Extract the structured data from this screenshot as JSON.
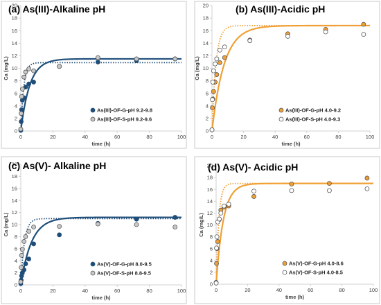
{
  "figure": {
    "background": "#ffffff"
  },
  "chart_data": [
    {
      "type": "scatter",
      "title": "(a) As(III)-Alkaline pH",
      "xlabel": "time (h)",
      "ylabel": "Ca (mg/L)",
      "xlim": [
        0,
        100
      ],
      "ylim": [
        0,
        20
      ],
      "xticks": [
        0,
        20,
        40,
        60,
        80,
        100
      ],
      "yticks": [
        0,
        2,
        4,
        6,
        8,
        10,
        12,
        14,
        16,
        18,
        20
      ],
      "legend_position": "bottom-right",
      "grid": false,
      "series": [
        {
          "name": "As(III)-OF-G-pH 9.2-9.8",
          "marker_fill": "#1f4e79",
          "marker_stroke": "#1f4e79",
          "fit_color": "#1f4e79",
          "fit_style": "solid",
          "fit": {
            "qe": 11.5,
            "k": 0.18
          },
          "x": [
            0,
            0.25,
            0.5,
            1,
            2,
            3,
            5,
            8,
            24,
            48,
            72,
            96
          ],
          "y": [
            0.1,
            1.5,
            3.4,
            4.9,
            5.3,
            7.0,
            7.5,
            7.8,
            10.3,
            11.0,
            11.2,
            11.5
          ]
        },
        {
          "name": "As(III)-OF-S-pH 9.2-9.6",
          "marker_fill": "#c8c8c8",
          "marker_stroke": "#555555",
          "fit_color": "#1f4e79",
          "fit_style": "dotted",
          "fit": {
            "qe": 10.9,
            "k": 0.55
          },
          "x": [
            0,
            0.25,
            0.5,
            1,
            2,
            3,
            5,
            8,
            24,
            48,
            72,
            96
          ],
          "y": [
            0.3,
            2.8,
            5.5,
            6.7,
            8.6,
            9.4,
            9.9,
            9.6,
            10.3,
            11.7,
            11.5,
            11.5
          ]
        }
      ]
    },
    {
      "type": "scatter",
      "title": "(b) As(III)-Acidic pH",
      "xlabel": "time (h)",
      "ylabel": "Ca (mg/L)",
      "xlim": [
        0,
        100
      ],
      "ylim": [
        0,
        20
      ],
      "xticks": [
        0,
        20,
        40,
        60,
        80,
        100
      ],
      "yticks": [
        0,
        2,
        4,
        6,
        8,
        10,
        12,
        14,
        16,
        18,
        20
      ],
      "legend_position": "bottom-right",
      "grid": false,
      "series": [
        {
          "name": "As(III)-OF-G-pH 4.0-9.2",
          "marker_fill": "#f0a035",
          "marker_stroke": "#555555",
          "fit_color": "#f0a035",
          "fit_style": "solid",
          "fit": {
            "qe": 16.8,
            "k": 0.13
          },
          "x": [
            0,
            0.25,
            0.5,
            1,
            2,
            3,
            5,
            8,
            24,
            48,
            72,
            96
          ],
          "y": [
            0.2,
            3.7,
            5.1,
            6.3,
            7.8,
            9.0,
            10.9,
            11.7,
            14.5,
            15.5,
            16.2,
            17.0
          ]
        },
        {
          "name": "As(III)-OF-S-pH 4.0-9.3",
          "marker_fill": "#ffffff",
          "marker_stroke": "#555555",
          "fit_color": "#f0a035",
          "fit_style": "dotted",
          "fit": {
            "qe": 16.8,
            "k": 0.4
          },
          "x": [
            0,
            0.25,
            0.5,
            1,
            2,
            3,
            5,
            8,
            24,
            48,
            72,
            96
          ],
          "y": [
            0.2,
            5.0,
            7.8,
            9.6,
            10.7,
            11.5,
            12.9,
            13.4,
            14.4,
            15.1,
            15.8,
            15.4
          ]
        }
      ]
    },
    {
      "type": "scatter",
      "title": "(c) As(V)- Alkaline pH",
      "xlabel": "time (h)",
      "ylabel": "Ca (mg/L)",
      "xlim": [
        0,
        100
      ],
      "ylim": [
        0,
        20
      ],
      "xticks": [
        0,
        20,
        40,
        60,
        80,
        100
      ],
      "yticks": [
        0,
        2,
        4,
        6,
        8,
        10,
        12,
        14,
        16,
        18,
        20
      ],
      "legend_position": "bottom-right",
      "grid": false,
      "series": [
        {
          "name": "As(V)-OF-G-pH 8.0-9.5",
          "marker_fill": "#1f4e79",
          "marker_stroke": "#1f4e79",
          "fit_color": "#1f4e79",
          "fit_style": "solid",
          "fit": {
            "qe": 11.2,
            "k": 0.15
          },
          "x": [
            0,
            0.25,
            0.5,
            1,
            2,
            3,
            5,
            8,
            24,
            48,
            72,
            96
          ],
          "y": [
            0.2,
            0.8,
            1.5,
            2.0,
            2.5,
            3.5,
            4.3,
            6.8,
            8.3,
            10.2,
            10.9,
            11.2
          ]
        },
        {
          "name": "As(V)-OF-S-pH 8.8-9.5",
          "marker_fill": "#c8c8c8",
          "marker_stroke": "#555555",
          "fit_color": "#1f4e79",
          "fit_style": "dotted",
          "fit": {
            "qe": 11.0,
            "k": 0.45
          },
          "x": [
            0,
            0.25,
            0.5,
            1,
            2,
            3,
            5,
            8,
            24,
            48,
            72,
            96
          ],
          "y": [
            0.5,
            2.9,
            4.9,
            5.9,
            7.2,
            8.0,
            8.9,
            9.6,
            9.7,
            10.1,
            10.0,
            9.6
          ]
        }
      ]
    },
    {
      "type": "scatter",
      "title": "(d) As(V)- Acidic pH",
      "xlabel": "time (h)",
      "ylabel": "Ca (mg/L)",
      "xlim": [
        0,
        100
      ],
      "ylim": [
        0,
        20
      ],
      "xticks": [
        0,
        20,
        40,
        60,
        80,
        100
      ],
      "yticks": [
        0,
        2,
        4,
        6,
        8,
        10,
        12,
        14,
        16,
        18,
        20
      ],
      "legend_position": "bottom-right",
      "grid": false,
      "series": [
        {
          "name": "As(V)-OF-G-pH 4.0-8.6",
          "marker_fill": "#f0a035",
          "marker_stroke": "#555555",
          "fit_color": "#f0a035",
          "fit_style": "solid",
          "fit": {
            "qe": 17.0,
            "k": 0.22
          },
          "x": [
            0,
            0.25,
            0.5,
            1,
            2,
            3,
            5,
            8,
            24,
            48,
            72,
            96
          ],
          "y": [
            0.3,
            3.5,
            6.0,
            7.2,
            10.9,
            12.5,
            13.0,
            13.2,
            14.8,
            16.9,
            17.0,
            17.9
          ]
        },
        {
          "name": "As(V)-OF-S-pH 4.0-8.5",
          "marker_fill": "#ffffff",
          "marker_stroke": "#555555",
          "fit_color": "#f0a035",
          "fit_style": "dotted",
          "fit": {
            "qe": 17.0,
            "k": 0.6
          },
          "x": [
            0,
            0.25,
            0.5,
            1,
            2,
            3,
            5,
            8,
            24,
            48,
            72,
            96
          ],
          "y": [
            0.2,
            6.1,
            8.0,
            10.5,
            11.0,
            12.0,
            13.2,
            13.5,
            15.7,
            15.8,
            15.8,
            16.1
          ]
        }
      ]
    }
  ]
}
